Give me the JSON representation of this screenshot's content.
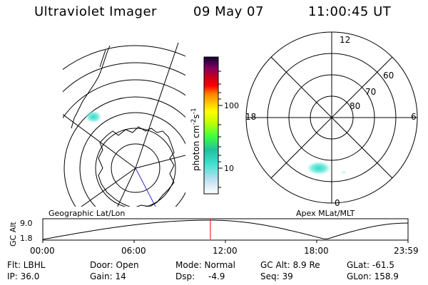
{
  "header": {
    "instrument": "Ultraviolet Imager",
    "date": "09 May 07",
    "time": "11:00:45 UT"
  },
  "colorbar": {
    "label": "photon cm",
    "label_exp1": "-2",
    "label_s": "s",
    "label_exp2": "-1",
    "ticks": [
      "100",
      "10"
    ]
  },
  "geo_panel": {
    "title": "Geographic Lat/Lon"
  },
  "apex_panel": {
    "title": "Apex MLat/MLT",
    "mlt_labels": [
      "12",
      "18",
      "6",
      "0"
    ],
    "mlat_labels": [
      "60",
      "70",
      "80"
    ]
  },
  "altitude_plot": {
    "ylabel": "GC Alt",
    "y_ticks": [
      "9.0",
      "1.8"
    ],
    "x_ticks": [
      "00:00",
      "06:00",
      "12:00",
      "18:00",
      "23:59"
    ],
    "marker_time_hours": 11.01
  },
  "status": {
    "filter": "Flt: LBHL",
    "ip": "IP: 36.0",
    "door": "Door: Open",
    "gain": "Gain: 14",
    "mode": "Mode: Normal",
    "dsp_label": "Dsp:",
    "dsp_value": "-4.9",
    "gc_alt": "GC Alt: 8.9 Re",
    "seq": "Seq: 39",
    "glat": "GLat: -61.5",
    "glon": "GLon: 158.9"
  },
  "colors": {
    "background": "#ffffff",
    "foreground": "#000000",
    "aurora_cyan": "#40e0d0",
    "marker_red": "#ff0000",
    "meridian_blue": "#3030c0"
  }
}
